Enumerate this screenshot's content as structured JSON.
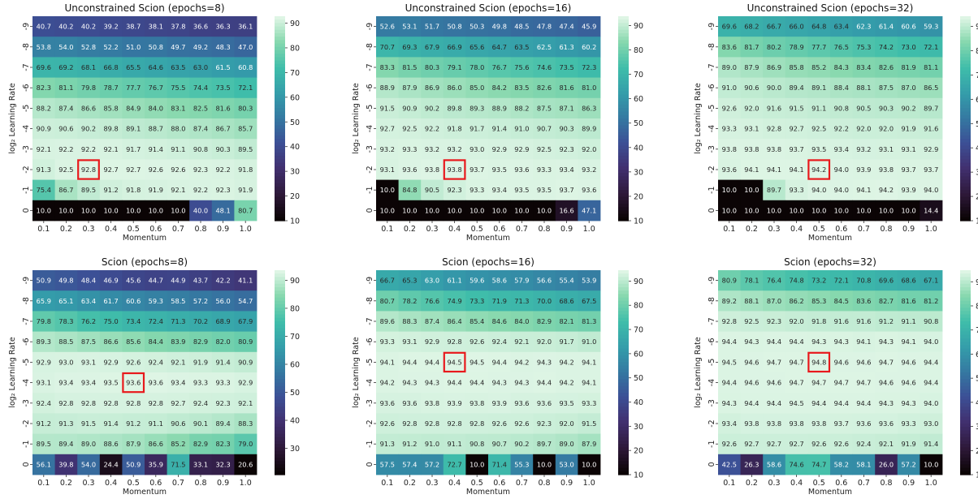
{
  "chart_data": [
    {
      "type": "heatmap",
      "title": "Unconstrained Scion (epochs=8)",
      "xlabel": "Momentum",
      "ylabel": "log₂ Learning Rate",
      "x_categories": [
        "0.1",
        "0.2",
        "0.3",
        "0.4",
        "0.5",
        "0.6",
        "0.7",
        "0.8",
        "0.9",
        "1.0"
      ],
      "y_categories": [
        "-9",
        "-8",
        "-7",
        "-6",
        "-5",
        "-4",
        "-3",
        "-2",
        "-1",
        "0"
      ],
      "values": [
        [
          40.7,
          40.2,
          40.2,
          39.2,
          38.7,
          38.1,
          37.8,
          36.6,
          36.3,
          36.1
        ],
        [
          53.8,
          54.0,
          52.8,
          52.2,
          51.0,
          50.8,
          49.7,
          49.2,
          48.3,
          47.0
        ],
        [
          69.6,
          69.2,
          68.1,
          66.8,
          65.5,
          64.6,
          63.5,
          63.0,
          61.5,
          60.8
        ],
        [
          82.3,
          81.1,
          79.8,
          78.7,
          77.7,
          76.7,
          75.5,
          74.4,
          73.5,
          72.1
        ],
        [
          88.2,
          87.4,
          86.6,
          85.8,
          84.9,
          84.0,
          83.1,
          82.5,
          81.6,
          80.3
        ],
        [
          90.9,
          90.6,
          90.2,
          89.8,
          89.1,
          88.7,
          88.0,
          87.4,
          86.7,
          85.7
        ],
        [
          92.1,
          92.2,
          92.2,
          92.1,
          91.7,
          91.4,
          91.1,
          90.8,
          90.3,
          89.5
        ],
        [
          91.3,
          92.5,
          92.8,
          92.7,
          92.7,
          92.6,
          92.6,
          92.3,
          92.2,
          91.8
        ],
        [
          75.4,
          86.7,
          89.5,
          91.2,
          91.8,
          91.9,
          92.1,
          92.2,
          92.3,
          91.9
        ],
        [
          10.0,
          10.0,
          10.0,
          10.0,
          10.0,
          10.0,
          10.0,
          40.0,
          48.1,
          80.7
        ]
      ],
      "highlight": [
        7,
        2
      ],
      "colorbar_ticks": [
        10,
        20,
        30,
        40,
        50,
        60,
        70,
        80,
        90
      ],
      "vmin": 10,
      "vmax": 92.8
    },
    {
      "type": "heatmap",
      "title": "Unconstrained Scion (epochs=16)",
      "xlabel": "Momentum",
      "ylabel": "log₂ Learning Rate",
      "x_categories": [
        "0.1",
        "0.2",
        "0.3",
        "0.4",
        "0.5",
        "0.6",
        "0.7",
        "0.8",
        "0.9",
        "1.0"
      ],
      "y_categories": [
        "-9",
        "-8",
        "-7",
        "-6",
        "-5",
        "-4",
        "-3",
        "-2",
        "-1",
        "0"
      ],
      "values": [
        [
          52.6,
          53.1,
          51.7,
          50.8,
          50.3,
          49.8,
          48.5,
          47.8,
          47.4,
          45.9
        ],
        [
          70.7,
          69.3,
          67.9,
          66.9,
          65.6,
          64.7,
          63.5,
          62.5,
          61.3,
          60.2
        ],
        [
          83.3,
          81.5,
          80.3,
          79.1,
          78.0,
          76.7,
          75.6,
          74.6,
          73.5,
          72.3
        ],
        [
          88.9,
          87.9,
          86.9,
          86.0,
          85.0,
          84.2,
          83.5,
          82.6,
          81.6,
          81.0
        ],
        [
          91.5,
          90.9,
          90.2,
          89.8,
          89.3,
          88.9,
          88.2,
          87.5,
          87.1,
          86.3
        ],
        [
          92.7,
          92.5,
          92.2,
          91.8,
          91.7,
          91.4,
          91.0,
          90.7,
          90.3,
          89.9
        ],
        [
          93.2,
          93.3,
          93.2,
          93.2,
          93.0,
          92.9,
          92.9,
          92.5,
          92.3,
          92.0
        ],
        [
          93.1,
          93.6,
          93.8,
          93.8,
          93.7,
          93.5,
          93.6,
          93.3,
          93.4,
          93.2
        ],
        [
          10.0,
          84.8,
          90.5,
          92.3,
          93.3,
          93.4,
          93.5,
          93.5,
          93.7,
          93.6
        ],
        [
          10.0,
          10.0,
          10.0,
          10.0,
          10.0,
          10.0,
          10.0,
          10.0,
          16.6,
          47.1
        ]
      ],
      "highlight": [
        7,
        3
      ],
      "colorbar_ticks": [
        10,
        20,
        30,
        40,
        50,
        60,
        70,
        80,
        90
      ],
      "vmin": 10,
      "vmax": 93.8
    },
    {
      "type": "heatmap",
      "title": "Unconstrained Scion (epochs=32)",
      "xlabel": "Momentum",
      "ylabel": "log₂ Learning Rate",
      "x_categories": [
        "0.1",
        "0.2",
        "0.3",
        "0.4",
        "0.5",
        "0.6",
        "0.7",
        "0.8",
        "0.9",
        "1.0"
      ],
      "y_categories": [
        "-9",
        "-8",
        "-7",
        "-6",
        "-5",
        "-4",
        "-3",
        "-2",
        "-1",
        "0"
      ],
      "values": [
        [
          69.6,
          68.2,
          66.7,
          66.0,
          64.8,
          63.4,
          62.3,
          61.4,
          60.6,
          59.3
        ],
        [
          83.6,
          81.7,
          80.2,
          78.9,
          77.7,
          76.5,
          75.3,
          74.2,
          73.0,
          72.1
        ],
        [
          89.0,
          87.9,
          86.9,
          85.8,
          85.2,
          84.3,
          83.4,
          82.6,
          81.9,
          81.1
        ],
        [
          91.0,
          90.6,
          90.0,
          89.4,
          89.1,
          88.4,
          88.1,
          87.5,
          87.0,
          86.5
        ],
        [
          92.6,
          92.0,
          91.6,
          91.5,
          91.1,
          90.8,
          90.5,
          90.3,
          90.2,
          89.7
        ],
        [
          93.3,
          93.1,
          92.8,
          92.7,
          92.5,
          92.2,
          92.0,
          92.0,
          91.9,
          91.6
        ],
        [
          93.8,
          93.8,
          93.8,
          93.7,
          93.5,
          93.4,
          93.2,
          93.1,
          93.1,
          92.9
        ],
        [
          93.6,
          94.1,
          94.1,
          94.1,
          94.2,
          94.0,
          93.9,
          93.8,
          93.7,
          93.7
        ],
        [
          10.0,
          10.0,
          89.7,
          93.3,
          94.0,
          94.0,
          94.1,
          94.2,
          93.9,
          94.0
        ],
        [
          10.0,
          10.0,
          10.0,
          10.0,
          10.0,
          10.0,
          10.0,
          10.0,
          10.0,
          14.4
        ]
      ],
      "highlight": [
        7,
        4
      ],
      "colorbar_ticks": [
        10,
        20,
        30,
        40,
        50,
        60,
        70,
        80,
        90
      ],
      "vmin": 10,
      "vmax": 94.2
    },
    {
      "type": "heatmap",
      "title": "Scion (epochs=8)",
      "xlabel": "Momentum",
      "ylabel": "log₂ Learning Rate",
      "x_categories": [
        "0.1",
        "0.2",
        "0.3",
        "0.4",
        "0.5",
        "0.6",
        "0.7",
        "0.8",
        "0.9",
        "1.0"
      ],
      "y_categories": [
        "-9",
        "-8",
        "-7",
        "-6",
        "-5",
        "-4",
        "-3",
        "-2",
        "-1",
        "0"
      ],
      "values": [
        [
          50.9,
          49.8,
          48.4,
          46.9,
          45.6,
          44.7,
          44.9,
          43.7,
          42.2,
          41.1
        ],
        [
          65.9,
          65.1,
          63.4,
          61.7,
          60.6,
          59.3,
          58.5,
          57.2,
          56.0,
          54.7
        ],
        [
          79.8,
          78.3,
          76.2,
          75.0,
          73.4,
          72.4,
          71.3,
          70.2,
          68.9,
          67.9
        ],
        [
          89.3,
          88.5,
          87.5,
          86.6,
          85.6,
          84.4,
          83.9,
          82.9,
          82.0,
          80.9
        ],
        [
          92.9,
          93.0,
          93.1,
          92.9,
          92.6,
          92.4,
          92.1,
          91.9,
          91.4,
          90.9
        ],
        [
          93.1,
          93.4,
          93.4,
          93.5,
          93.6,
          93.6,
          93.4,
          93.3,
          93.3,
          92.9
        ],
        [
          92.4,
          92.8,
          92.8,
          92.8,
          92.8,
          92.8,
          92.7,
          92.4,
          92.3,
          92.1
        ],
        [
          91.2,
          91.3,
          91.5,
          91.4,
          91.2,
          91.1,
          90.6,
          90.1,
          89.4,
          88.3
        ],
        [
          89.5,
          89.4,
          89.0,
          88.6,
          87.9,
          86.6,
          85.2,
          82.9,
          82.3,
          79.0
        ],
        [
          56.1,
          39.8,
          54.0,
          24.4,
          50.9,
          35.9,
          71.5,
          33.1,
          32.3,
          20.6
        ]
      ],
      "highlight": [
        5,
        4
      ],
      "colorbar_ticks": [
        30,
        40,
        50,
        60,
        70,
        80,
        90
      ],
      "vmin": 20.6,
      "vmax": 93.6
    },
    {
      "type": "heatmap",
      "title": "Scion (epochs=16)",
      "xlabel": "Momentum",
      "ylabel": "log₂ Learning Rate",
      "x_categories": [
        "0.1",
        "0.2",
        "0.3",
        "0.4",
        "0.5",
        "0.6",
        "0.7",
        "0.8",
        "0.9",
        "1.0"
      ],
      "y_categories": [
        "-9",
        "-8",
        "-7",
        "-6",
        "-5",
        "-4",
        "-3",
        "-2",
        "-1",
        "0"
      ],
      "values": [
        [
          66.7,
          65.3,
          63.0,
          61.1,
          59.6,
          58.6,
          57.9,
          56.6,
          55.4,
          53.9
        ],
        [
          80.7,
          78.2,
          76.6,
          74.9,
          73.3,
          71.9,
          71.3,
          70.0,
          68.6,
          67.5
        ],
        [
          89.6,
          88.3,
          87.4,
          86.4,
          85.4,
          84.6,
          84.0,
          82.9,
          82.1,
          81.3
        ],
        [
          93.3,
          93.1,
          92.9,
          92.8,
          92.6,
          92.4,
          92.1,
          92.0,
          91.7,
          91.0
        ],
        [
          94.1,
          94.4,
          94.4,
          94.5,
          94.5,
          94.4,
          94.2,
          94.3,
          94.2,
          94.1
        ],
        [
          94.2,
          94.3,
          94.3,
          94.4,
          94.4,
          94.3,
          94.3,
          94.4,
          94.2,
          94.1
        ],
        [
          93.6,
          93.6,
          93.8,
          93.9,
          93.8,
          93.9,
          93.6,
          93.6,
          93.5,
          93.3
        ],
        [
          92.6,
          92.8,
          92.8,
          92.8,
          92.8,
          92.6,
          92.6,
          92.3,
          92.0,
          91.5
        ],
        [
          91.3,
          91.2,
          91.0,
          91.1,
          90.8,
          90.7,
          90.2,
          89.7,
          89.0,
          87.9
        ],
        [
          57.5,
          57.4,
          57.2,
          72.7,
          10.0,
          71.4,
          55.3,
          10.0,
          53.0,
          10.0
        ]
      ],
      "highlight": [
        4,
        3
      ],
      "colorbar_ticks": [
        10,
        20,
        30,
        40,
        50,
        60,
        70,
        80,
        90
      ],
      "vmin": 10,
      "vmax": 94.5
    },
    {
      "type": "heatmap",
      "title": "Scion (epochs=32)",
      "xlabel": "Momentum",
      "ylabel": "log₂ Learning Rate",
      "x_categories": [
        "0.1",
        "0.2",
        "0.3",
        "0.4",
        "0.5",
        "0.6",
        "0.7",
        "0.8",
        "0.9",
        "1.0"
      ],
      "y_categories": [
        "-9",
        "-8",
        "-7",
        "-6",
        "-5",
        "-4",
        "-3",
        "-2",
        "-1",
        "0"
      ],
      "values": [
        [
          80.9,
          78.1,
          76.4,
          74.8,
          73.2,
          72.1,
          70.8,
          69.6,
          68.6,
          67.1
        ],
        [
          89.2,
          88.1,
          87.0,
          86.2,
          85.3,
          84.5,
          83.6,
          82.7,
          81.6,
          81.2
        ],
        [
          92.8,
          92.5,
          92.3,
          92.0,
          91.8,
          91.6,
          91.6,
          91.2,
          91.1,
          90.8
        ],
        [
          94.4,
          94.3,
          94.4,
          94.4,
          94.3,
          94.3,
          94.1,
          94.3,
          94.1,
          94.0
        ],
        [
          94.5,
          94.6,
          94.7,
          94.7,
          94.8,
          94.6,
          94.6,
          94.7,
          94.6,
          94.4
        ],
        [
          94.4,
          94.6,
          94.6,
          94.7,
          94.7,
          94.7,
          94.7,
          94.6,
          94.6,
          94.4
        ],
        [
          94.3,
          94.4,
          94.4,
          94.5,
          94.4,
          94.4,
          94.4,
          94.3,
          94.3,
          94.0
        ],
        [
          93.4,
          93.8,
          93.8,
          93.8,
          93.8,
          93.7,
          93.6,
          93.6,
          93.3,
          93.0
        ],
        [
          92.6,
          92.7,
          92.7,
          92.7,
          92.6,
          92.6,
          92.4,
          92.1,
          91.9,
          91.4
        ],
        [
          42.5,
          26.3,
          58.6,
          74.6,
          74.7,
          58.2,
          58.1,
          26.0,
          57.2,
          10.0
        ]
      ],
      "highlight": [
        4,
        4
      ],
      "colorbar_ticks": [
        10,
        20,
        30,
        40,
        50,
        60,
        70,
        80,
        90
      ],
      "vmin": 10,
      "vmax": 94.8
    }
  ],
  "colors": {
    "highlight": "#e8191c",
    "colormap": "mako"
  }
}
